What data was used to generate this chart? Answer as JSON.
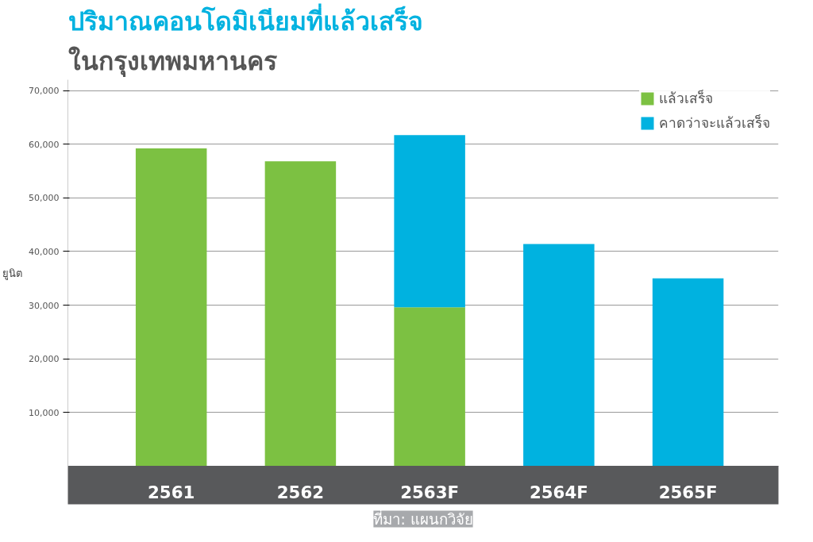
{
  "chart_data": {
    "type": "bar",
    "stacked": true,
    "title": "ปริมาณคอนโดมิเนียมที่แล้วเสร็จ",
    "subtitle": "ในกรุงเทพมหานคร",
    "ylabel": "ยูนิต",
    "categories": [
      "2561",
      "2562",
      "2563F",
      "2564F",
      "2565F"
    ],
    "series": [
      {
        "name": "แล้วเสร็จ",
        "color": "#7cc142",
        "values": [
          59200,
          56800,
          29600,
          null,
          null
        ]
      },
      {
        "name": "คาดว่าจะแล้วเสร็จ",
        "color": "#00b2e0",
        "values": [
          null,
          null,
          32100,
          41400,
          35000
        ]
      }
    ],
    "ylim": [
      0,
      72000
    ],
    "yticks": [
      {
        "value": 10000,
        "label": "10,000"
      },
      {
        "value": 20000,
        "label": "20,000"
      },
      {
        "value": 30000,
        "label": "30,000"
      },
      {
        "value": 40000,
        "label": "40,000"
      },
      {
        "value": 50000,
        "label": "50,000"
      },
      {
        "value": 60000,
        "label": "60,000"
      },
      {
        "value": 70000,
        "label": "70,000"
      }
    ],
    "grid": "y",
    "legend": "top right",
    "annotations": [
      "ที่มา: แผนกวิจัย"
    ]
  }
}
